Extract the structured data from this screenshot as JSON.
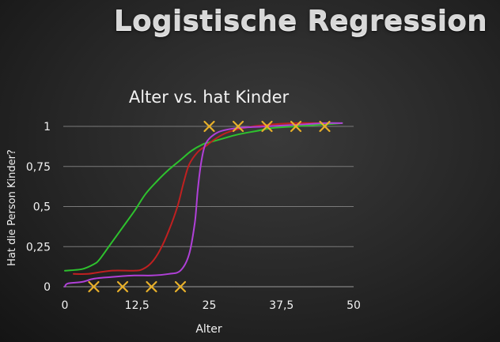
{
  "slide": {
    "title": "Logistische Regression"
  },
  "chart_data": {
    "type": "line",
    "title": "Alter vs. hat Kinder",
    "xlabel": "Alter",
    "ylabel": "Hat die Person Kinder?",
    "xlim": [
      0,
      50
    ],
    "ylim": [
      0,
      1
    ],
    "x_ticks": [
      "0",
      "12,5",
      "25",
      "37,5",
      "50"
    ],
    "y_ticks": [
      "0",
      "0,25",
      "0,5",
      "0,75",
      "1"
    ],
    "grid": true,
    "points": {
      "marker": "x",
      "color": "#e8b02a",
      "x": [
        5,
        10,
        15,
        20,
        25,
        30,
        35,
        40,
        45
      ],
      "y": [
        0,
        0,
        0,
        0,
        1,
        1,
        1,
        1,
        1
      ]
    },
    "series": [
      {
        "color": "#2ec22e",
        "x": [
          0,
          3,
          5,
          6,
          8,
          10,
          12,
          14,
          16,
          18,
          20,
          22,
          24,
          25,
          27,
          30,
          33,
          36,
          40,
          44,
          48
        ],
        "y": [
          0.1,
          0.11,
          0.14,
          0.17,
          0.27,
          0.37,
          0.47,
          0.58,
          0.66,
          0.73,
          0.79,
          0.85,
          0.89,
          0.9,
          0.92,
          0.95,
          0.97,
          0.99,
          1.0,
          1.01,
          1.02
        ]
      },
      {
        "color": "#c02020",
        "x": [
          1.5,
          4,
          8,
          12,
          13.5,
          15,
          16.5,
          18,
          19.5,
          20.5,
          21.5,
          23,
          24.5,
          26,
          28,
          31,
          35,
          40,
          45
        ],
        "y": [
          0.08,
          0.08,
          0.1,
          0.1,
          0.11,
          0.15,
          0.23,
          0.35,
          0.5,
          0.64,
          0.76,
          0.84,
          0.88,
          0.92,
          0.96,
          0.99,
          1.01,
          1.02,
          1.02
        ]
      },
      {
        "color": "#b040d8",
        "x": [
          0,
          0.5,
          3,
          5,
          8,
          12,
          15,
          18,
          20,
          21.5,
          22.5,
          23,
          23.5,
          24,
          24.5,
          25.5,
          27,
          30,
          35,
          40,
          45,
          48
        ],
        "y": [
          0.0,
          0.02,
          0.03,
          0.05,
          0.06,
          0.07,
          0.07,
          0.08,
          0.1,
          0.2,
          0.4,
          0.6,
          0.75,
          0.85,
          0.9,
          0.94,
          0.97,
          0.99,
          1.0,
          1.01,
          1.02,
          1.02
        ]
      }
    ]
  }
}
